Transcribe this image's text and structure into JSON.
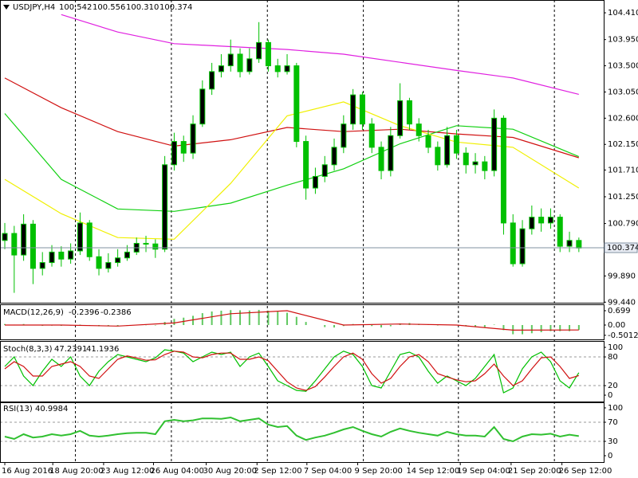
{
  "chart_data": [
    {
      "type": "candlestick",
      "symbol": "USDJPY,H4",
      "header_values": [
        {
          "value": 100.542,
          "label": "100.542"
        },
        {
          "value": 100.556,
          "label": "100.556"
        },
        {
          "value": 100.31,
          "label": "100.310"
        },
        {
          "value": 100.374,
          "label": "100.374"
        }
      ],
      "xlim": [
        -0.51,
        63.64
      ],
      "ylim": [
        99.43,
        104.63
      ],
      "yticks": [
        {
          "value": 104.41,
          "label": "104.410"
        },
        {
          "value": 103.95,
          "label": "103.950"
        },
        {
          "value": 103.5,
          "label": "103.500"
        },
        {
          "value": 103.05,
          "label": "103.050"
        },
        {
          "value": 102.6,
          "label": "102.600"
        },
        {
          "value": 102.15,
          "label": "102.150"
        },
        {
          "value": 101.71,
          "label": "101.710"
        },
        {
          "value": 101.25,
          "label": "101.250"
        },
        {
          "value": 100.79,
          "label": "100.790"
        },
        {
          "value": 99.89,
          "label": "99.890"
        },
        {
          "value": 99.44,
          "label": "99.440"
        }
      ],
      "current_price": {
        "value": 100.374,
        "label": "100.374"
      },
      "xgrid": [
        7.5,
        17.7,
        27.9,
        38.1,
        48.2,
        58.4
      ],
      "candle_color": "#00c000",
      "open": [
        100.5,
        100.62,
        100.25,
        100.78,
        100.02,
        100.12,
        100.3,
        100.18,
        100.32,
        100.8,
        100.22,
        100.02,
        100.12,
        100.2,
        100.3,
        100.45,
        100.44,
        100.35,
        101.8,
        102.2,
        102.0,
        102.5,
        103.1,
        103.4,
        103.5,
        103.7,
        103.4,
        103.62,
        103.9,
        103.5,
        103.4,
        103.5,
        102.2,
        101.4,
        101.6,
        101.8,
        102.1,
        102.5,
        103.0,
        102.5,
        102.1,
        101.7,
        102.3,
        102.9,
        102.5,
        102.3,
        102.1,
        101.8,
        102.3,
        102.0,
        101.8,
        101.85,
        101.7,
        102.6,
        100.8,
        100.1,
        100.7,
        100.9,
        100.8,
        100.9,
        100.4,
        100.5
      ],
      "high": [
        100.8,
        100.75,
        100.95,
        100.85,
        100.3,
        100.42,
        100.4,
        100.45,
        100.98,
        100.85,
        100.35,
        100.28,
        100.35,
        100.42,
        100.55,
        100.58,
        100.52,
        101.95,
        102.35,
        102.3,
        102.65,
        103.25,
        103.55,
        103.7,
        103.95,
        103.8,
        103.8,
        104.25,
        103.95,
        103.62,
        103.7,
        103.55,
        102.3,
        101.75,
        101.95,
        102.25,
        102.65,
        103.1,
        103.05,
        102.6,
        102.2,
        102.45,
        103.2,
        102.95,
        102.6,
        102.4,
        102.2,
        102.45,
        102.4,
        102.1,
        102.0,
        101.95,
        102.75,
        102.65,
        100.95,
        100.85,
        101.1,
        101.05,
        101.05,
        100.95,
        100.65,
        100.55
      ],
      "low": [
        100.35,
        99.6,
        100.15,
        99.75,
        99.9,
        100.05,
        100.05,
        100.1,
        100.25,
        100.15,
        99.9,
        99.95,
        100.05,
        100.15,
        100.25,
        100.3,
        100.2,
        100.3,
        101.7,
        101.85,
        101.9,
        102.45,
        103.0,
        103.3,
        103.4,
        103.3,
        103.35,
        103.55,
        103.4,
        103.3,
        103.35,
        102.1,
        101.2,
        101.3,
        101.5,
        101.7,
        102.0,
        102.4,
        102.4,
        102.0,
        101.55,
        101.6,
        102.25,
        102.4,
        102.2,
        102.0,
        101.7,
        101.75,
        101.9,
        101.65,
        101.65,
        101.55,
        101.6,
        100.6,
        100.05,
        100.05,
        100.6,
        100.65,
        100.7,
        100.3,
        100.3,
        100.3
      ],
      "close": [
        100.62,
        100.25,
        100.78,
        100.02,
        100.12,
        100.3,
        100.18,
        100.32,
        100.8,
        100.22,
        100.02,
        100.12,
        100.2,
        100.3,
        100.45,
        100.44,
        100.35,
        101.8,
        102.2,
        102.0,
        102.5,
        103.1,
        103.4,
        103.5,
        103.7,
        103.4,
        103.62,
        103.9,
        103.5,
        103.4,
        103.5,
        102.2,
        101.4,
        101.6,
        101.8,
        102.1,
        102.5,
        103.0,
        102.5,
        102.1,
        101.7,
        102.3,
        102.9,
        102.5,
        102.3,
        102.1,
        101.8,
        102.3,
        102.0,
        101.8,
        101.85,
        101.7,
        102.6,
        100.8,
        100.1,
        100.7,
        100.9,
        100.8,
        100.9,
        100.4,
        100.5,
        100.37
      ],
      "ma_x": [
        0,
        6,
        12,
        18,
        24,
        30,
        36,
        42,
        48,
        54,
        61
      ],
      "series": [
        {
          "color": "#e020e0",
          "values": [
            null,
            104.38,
            104.08,
            103.88,
            103.83,
            103.78,
            103.7,
            103.56,
            103.42,
            103.29,
            103.01
          ]
        },
        {
          "color": "#d01010",
          "values": [
            103.29,
            102.78,
            102.37,
            102.12,
            102.23,
            102.44,
            102.37,
            102.41,
            102.33,
            102.27,
            101.92
          ]
        },
        {
          "color": "#10d010",
          "values": [
            102.68,
            101.55,
            101.04,
            101.0,
            101.14,
            101.45,
            101.73,
            102.16,
            102.47,
            102.41,
            101.94
          ]
        },
        {
          "color": "#f0f000",
          "values": [
            101.55,
            100.96,
            100.55,
            100.52,
            101.48,
            102.64,
            102.88,
            102.47,
            102.19,
            102.1,
            101.4
          ]
        }
      ]
    },
    {
      "type": "macd",
      "title": "MACD(12,26,9)",
      "header_values": [
        -0.2396,
        -0.2386
      ],
      "ylim": [
        -0.7,
        1.01
      ],
      "yticks": [
        0.699,
        {
          "value": 0,
          "label": "0.00"
        },
        -0.5012
      ],
      "histogram_color": "#60c860",
      "signal_color": "#d01010",
      "values": [
        0.05,
        0.02,
        0.05,
        -0.02,
        -0.04,
        -0.03,
        -0.04,
        -0.03,
        0.02,
        -0.02,
        -0.06,
        -0.06,
        -0.05,
        -0.04,
        -0.02,
        -0.01,
        -0.02,
        0.15,
        0.3,
        0.36,
        0.45,
        0.58,
        0.66,
        0.7,
        0.73,
        0.72,
        0.71,
        0.74,
        0.7,
        0.65,
        0.6,
        0.4,
        0.15,
        0.0,
        -0.1,
        -0.12,
        -0.05,
        0.05,
        0.0,
        -0.05,
        -0.12,
        -0.06,
        0.08,
        0.1,
        0.06,
        0.03,
        -0.02,
        0.0,
        -0.02,
        -0.06,
        -0.08,
        -0.1,
        0.02,
        -0.25,
        -0.45,
        -0.45,
        -0.4,
        -0.35,
        -0.3,
        -0.3,
        -0.3,
        -0.24
      ],
      "signal_x": [
        0,
        6,
        12,
        18,
        24,
        30,
        36,
        42,
        48,
        54,
        61
      ],
      "signal": [
        0.0,
        0.0,
        -0.05,
        0.1,
        0.55,
        0.7,
        0.0,
        0.05,
        0.0,
        -0.25,
        -0.24
      ]
    },
    {
      "type": "stochastic",
      "title": "Stoch(8,3,3)",
      "header_values": [
        47.2391,
        41.1936
      ],
      "ylim": [
        -13.3,
        111.7
      ],
      "yticks": [
        100,
        80,
        20,
        0
      ],
      "levels": [
        80,
        20
      ],
      "series": [
        {
          "color": "#00c000",
          "values": [
            60,
            80,
            40,
            20,
            50,
            75,
            60,
            80,
            40,
            20,
            50,
            70,
            85,
            80,
            75,
            70,
            78,
            95,
            92,
            88,
            70,
            80,
            90,
            85,
            90,
            60,
            80,
            88,
            60,
            30,
            20,
            10,
            8,
            30,
            55,
            80,
            92,
            85,
            60,
            20,
            15,
            50,
            85,
            90,
            80,
            50,
            25,
            40,
            30,
            20,
            35,
            60,
            85,
            5,
            15,
            55,
            80,
            90,
            70,
            30,
            15,
            47
          ]
        },
        {
          "color": "#d01010",
          "values": [
            55,
            70,
            60,
            40,
            40,
            60,
            65,
            70,
            60,
            40,
            35,
            55,
            75,
            82,
            78,
            73,
            74,
            85,
            92,
            90,
            80,
            78,
            85,
            88,
            88,
            75,
            75,
            80,
            72,
            50,
            28,
            15,
            10,
            18,
            38,
            60,
            80,
            88,
            75,
            45,
            25,
            35,
            60,
            80,
            85,
            70,
            45,
            38,
            32,
            28,
            30,
            45,
            65,
            40,
            20,
            30,
            55,
            78,
            80,
            60,
            35,
            41
          ]
        }
      ]
    },
    {
      "type": "rsi",
      "title": "RSI(13)",
      "header_values": [
        40.9984
      ],
      "ylim": [
        -13.3,
        110
      ],
      "yticks": [
        100,
        70,
        30,
        0
      ],
      "levels": [
        70,
        30
      ],
      "color": "#30c030",
      "values": [
        40,
        35,
        45,
        38,
        40,
        45,
        42,
        45,
        52,
        42,
        40,
        42,
        45,
        47,
        48,
        48,
        45,
        72,
        75,
        72,
        74,
        78,
        78,
        77,
        80,
        72,
        75,
        78,
        65,
        60,
        62,
        42,
        33,
        38,
        42,
        48,
        55,
        60,
        52,
        45,
        40,
        50,
        57,
        52,
        48,
        45,
        42,
        50,
        45,
        42,
        42,
        40,
        60,
        35,
        30,
        40,
        45,
        44,
        46,
        40,
        44,
        41
      ],
      "xticks": [
        {
          "value": 0,
          "label": "16 Aug 2016"
        },
        {
          "value": 5.1,
          "label": "18 Aug 20:00"
        },
        {
          "value": 10.5,
          "label": "23 Aug 12:00"
        },
        {
          "value": 15.8,
          "label": "26 Aug 04:00"
        },
        {
          "value": 21.4,
          "label": "30 Aug 20:00"
        },
        {
          "value": 26.8,
          "label": "2 Sep 12:00"
        },
        {
          "value": 32.1,
          "label": "7 Sep 04:00"
        },
        {
          "value": 37.5,
          "label": "9 Sep 20:00"
        },
        {
          "value": 43,
          "label": "14 Sep 12:00"
        },
        {
          "value": 48.4,
          "label": "19 Sep 04:00"
        },
        {
          "value": 53.8,
          "label": "21 Sep 20:00"
        },
        {
          "value": 59.2,
          "label": "26 Sep 12:00"
        }
      ]
    }
  ]
}
